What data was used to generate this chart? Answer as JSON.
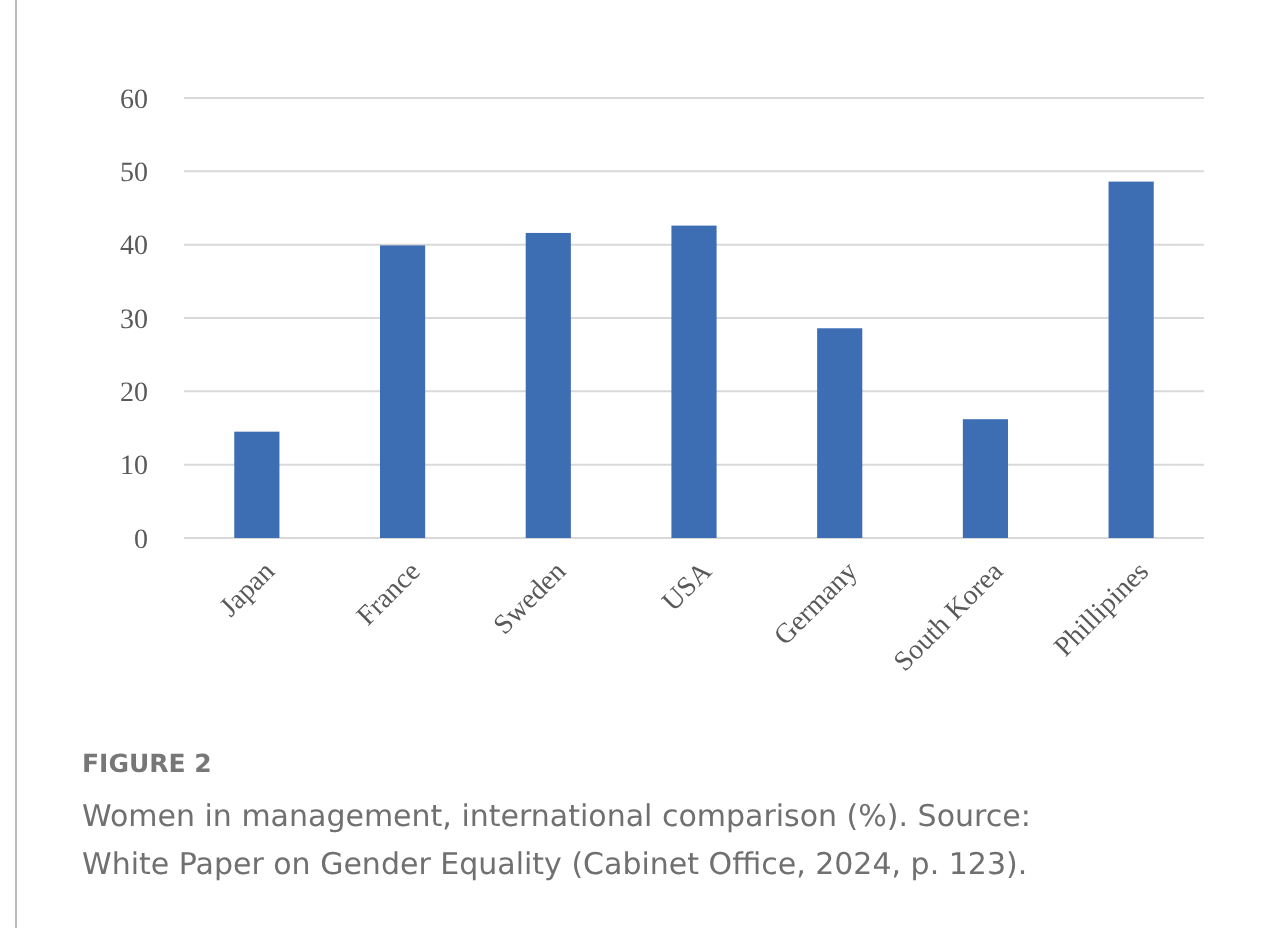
{
  "chart_data": {
    "type": "bar",
    "title": "FIGURE 2",
    "annotations": [
      "Women in management, international comparison (%). Source:",
      "White Paper on Gender Equality (Cabinet Office, 2024, p. 123)."
    ],
    "categories": [
      "Japan",
      "France",
      "Sweden",
      "USA",
      "Germany",
      "South Korea",
      "Phillipines"
    ],
    "values": [
      14.5,
      39.9,
      41.6,
      42.6,
      28.6,
      16.2,
      48.6
    ],
    "color": "#3d6eb4",
    "ylim": [
      0,
      60
    ],
    "yticks": [
      0,
      10,
      20,
      30,
      40,
      50,
      60
    ],
    "grid": "y"
  }
}
